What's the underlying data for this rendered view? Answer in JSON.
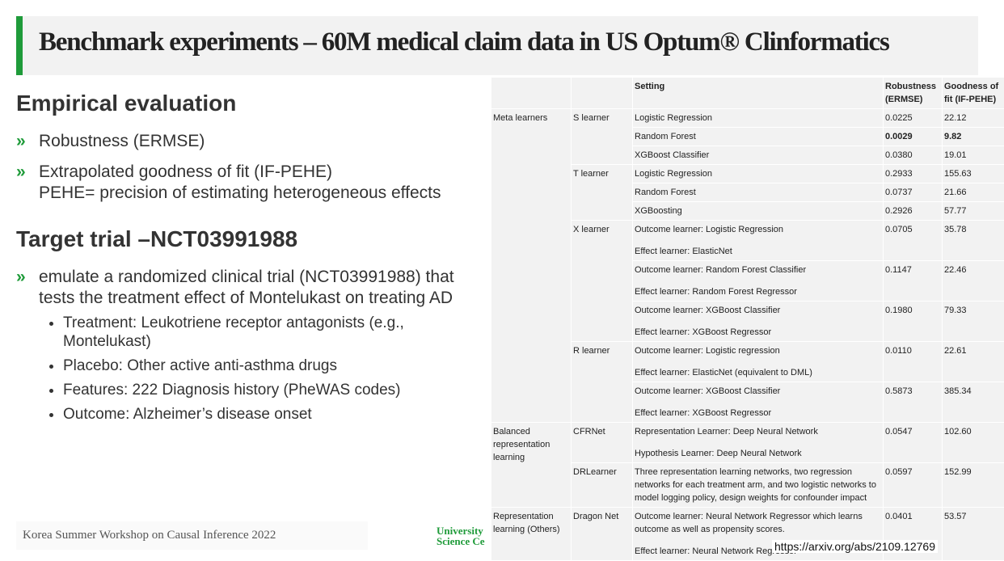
{
  "header": {
    "title": "Benchmark experiments – 60M medical claim data in US Optum® Clinformatics"
  },
  "sections": [
    {
      "heading": "Empirical evaluation",
      "bullets": [
        {
          "lines": [
            "Robustness  (ERMSE)"
          ]
        },
        {
          "lines": [
            "Extrapolated goodness of fit (IF-PEHE)",
            "PEHE= precision of estimating heterogeneous effects"
          ]
        }
      ]
    },
    {
      "heading": "Target trial –NCT03991988",
      "bullets": [
        {
          "lines": [
            "emulate a randomized clinical trial (NCT03991988) that tests the treatment effect of Montelukast on treating AD"
          ],
          "sub": [
            "Treatment: Leukotriene receptor antagonists (e.g., Montelukast)",
            "Placebo: Other active anti-asthma drugs",
            "Features: 222 Diagnosis history (PheWAS codes)",
            "Outcome: Alzheimer’s disease onset"
          ]
        }
      ]
    }
  ],
  "table": {
    "header": [
      "Setting",
      "Robustness (ERMSE)",
      "Goodness of fit (IF-PEHE)"
    ],
    "groups": [
      {
        "name": "Meta learners",
        "learners": [
          {
            "name": "S learner",
            "rows": [
              {
                "setting": [
                  "Logistic Regression"
                ],
                "robustness": "0.0225",
                "goodness": "22.12"
              },
              {
                "setting": [
                  "Random Forest"
                ],
                "robustness": "0.0029",
                "goodness": "9.82",
                "emphasis": true
              },
              {
                "setting": [
                  "XGBoost Classifier"
                ],
                "robustness": "0.0380",
                "goodness": "19.01"
              }
            ]
          },
          {
            "name": "T learner",
            "rows": [
              {
                "setting": [
                  "Logistic Regression"
                ],
                "robustness": "0.2933",
                "goodness": "155.63"
              },
              {
                "setting": [
                  "Random Forest"
                ],
                "robustness": "0.0737",
                "goodness": "21.66"
              },
              {
                "setting": [
                  "XGBoosting"
                ],
                "robustness": "0.2926",
                "goodness": "57.77"
              }
            ]
          },
          {
            "name": "X learner",
            "rows": [
              {
                "setting": [
                  "Outcome learner: Logistic Regression",
                  "Effect learner: ElasticNet"
                ],
                "robustness": "0.0705",
                "goodness": "35.78"
              },
              {
                "setting": [
                  "Outcome learner: Random Forest Classifier",
                  "Effect learner: Random Forest Regressor"
                ],
                "robustness": "0.1147",
                "goodness": "22.46"
              },
              {
                "setting": [
                  "Outcome learner: XGBoost Classifier",
                  "Effect learner: XGBoost Regressor"
                ],
                "robustness": "0.1980",
                "goodness": "79.33"
              }
            ]
          },
          {
            "name": "R learner",
            "rows": [
              {
                "setting": [
                  "Outcome learner: Logistic regression",
                  "Effect learner: ElasticNet (equivalent to DML)"
                ],
                "robustness": "0.0110",
                "goodness": "22.61"
              },
              {
                "setting": [
                  "Outcome learner: XGBoost Classifier",
                  "Effect learner: XGBoost Regressor"
                ],
                "robustness": "0.5873",
                "goodness": "385.34"
              }
            ]
          }
        ]
      },
      {
        "name": "Balanced representation learning",
        "learners": [
          {
            "name": "CFRNet",
            "rows": [
              {
                "setting": [
                  "Representation Learner: Deep Neural Network",
                  "Hypothesis Learner: Deep Neural Network"
                ],
                "robustness": "0.0547",
                "goodness": "102.60"
              }
            ]
          },
          {
            "name": "DRLearner",
            "rows": [
              {
                "setting": [
                  "Three representation learning networks, two regression networks for each treatment arm, and two logistic networks to model logging policy, design weights for confounder impact"
                ],
                "robustness": "0.0597",
                "goodness": "152.99"
              }
            ]
          }
        ]
      },
      {
        "name": "Representation learning (Others)",
        "learners": [
          {
            "name": "Dragon Net",
            "rows": [
              {
                "setting": [
                  "Outcome learner: Neural Network Regressor which learns outcome as well as propensity scores.",
                  "Effect learner: Neural Network Regressor"
                ],
                "robustness": "0.0401",
                "goodness": "53.57"
              }
            ]
          }
        ]
      }
    ]
  },
  "footer": {
    "event": "Korea Summer Workshop on Causal Inference 2022",
    "logo": [
      "University",
      "Science Ce"
    ],
    "url": "https://arxiv.org/abs/2109.12769"
  }
}
